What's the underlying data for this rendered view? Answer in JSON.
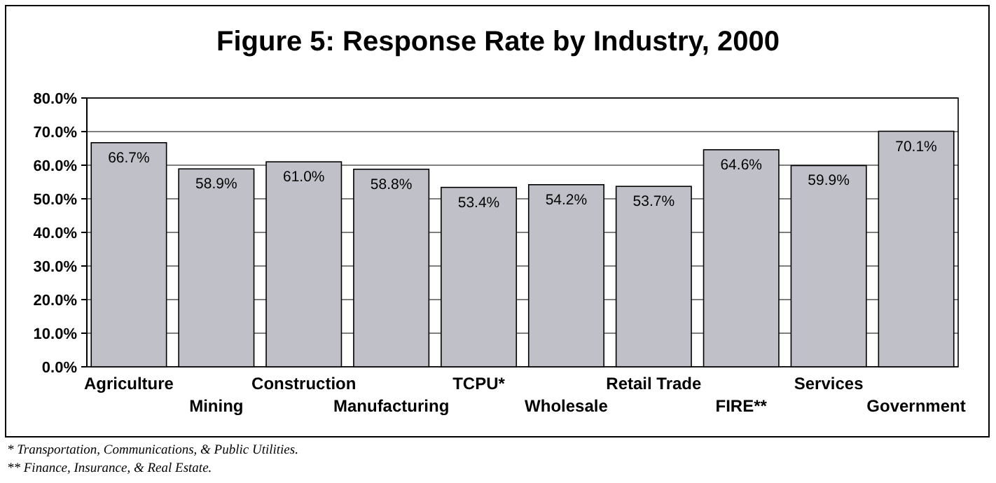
{
  "chart_data": {
    "type": "bar",
    "title": "Figure 5: Response Rate by Industry, 2000",
    "categories": [
      "Agriculture",
      "Mining",
      "Construction",
      "Manufacturing",
      "TCPU*",
      "Wholesale",
      "Retail Trade",
      "FIRE**",
      "Services",
      "Government"
    ],
    "values": [
      66.7,
      58.9,
      61.0,
      58.8,
      53.4,
      54.2,
      53.7,
      64.6,
      59.9,
      70.1
    ],
    "value_labels": [
      "66.7%",
      "58.9%",
      "61.0%",
      "58.8%",
      "53.4%",
      "54.2%",
      "53.7%",
      "64.6%",
      "59.9%",
      "70.1%"
    ],
    "color": "#c0c0c8",
    "ylim": [
      0,
      80
    ],
    "yticks": [
      {
        "value": 0,
        "label": "0.0%"
      },
      {
        "value": 10,
        "label": "10.0%"
      },
      {
        "value": 20,
        "label": "20.0%"
      },
      {
        "value": 30,
        "label": "30.0%"
      },
      {
        "value": 40,
        "label": "40.0%"
      },
      {
        "value": 50,
        "label": "50.0%"
      },
      {
        "value": 60,
        "label": "60.0%"
      },
      {
        "value": 70,
        "label": "70.0%"
      },
      {
        "value": 80,
        "label": "80.0%"
      }
    ],
    "grid": "y",
    "annotations": [
      "* Transportation, Communications, & Public Utilities.",
      "** Finance, Insurance, & Real Estate."
    ]
  }
}
